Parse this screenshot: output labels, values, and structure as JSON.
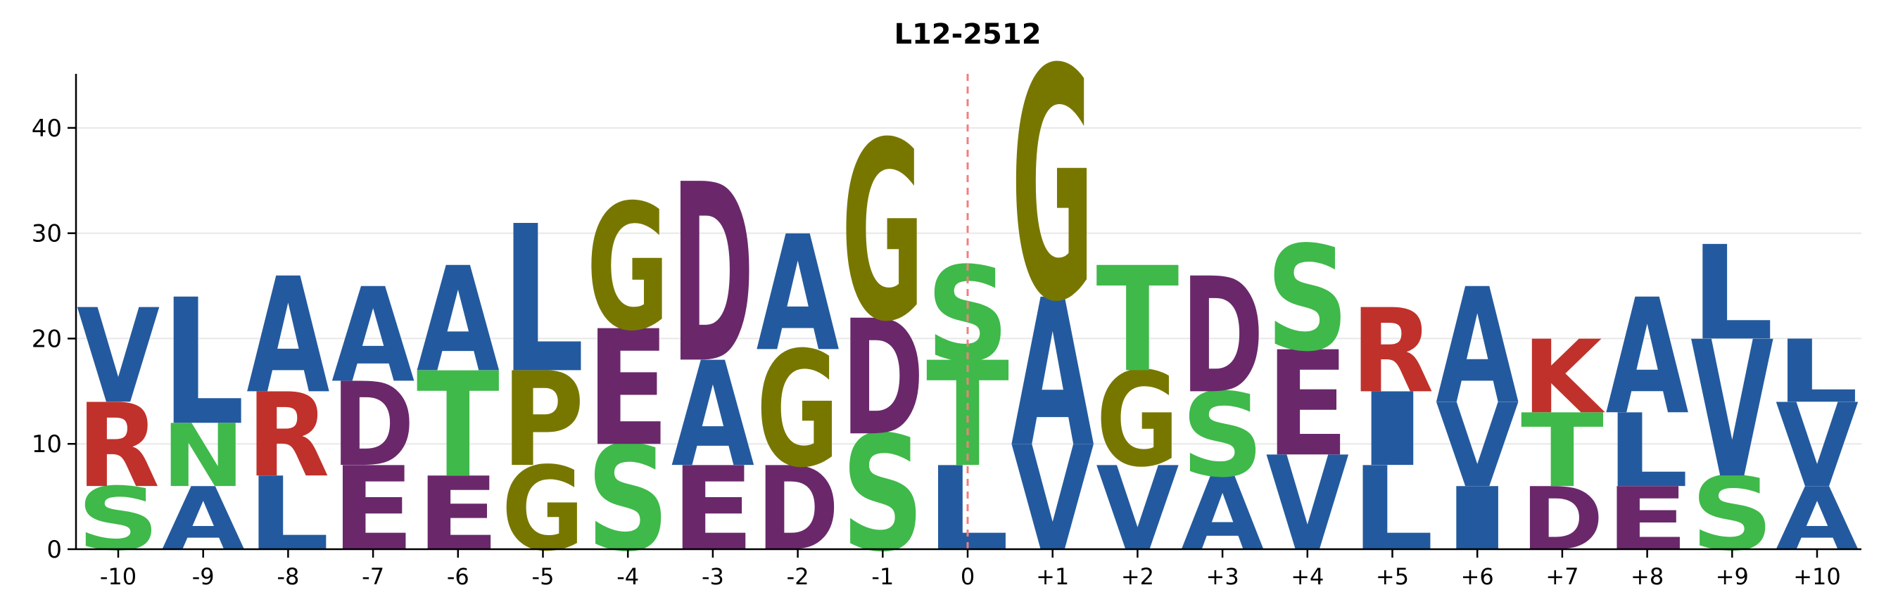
{
  "chart_data": {
    "type": "sequence-logo",
    "title": "L12-2512",
    "xlabel": "",
    "ylabel": "",
    "ylim": [
      0,
      46
    ],
    "yticks": [
      0,
      10,
      20,
      30,
      40
    ],
    "grid": "horizontal",
    "center_marker": {
      "position": "0",
      "color": "#f07f7f",
      "style": "dashed"
    },
    "colors": {
      "hydrophobic": "#235a9f",
      "basic": "#c0312b",
      "acidic": "#6a286b",
      "polar": "#3fb94a",
      "special": "#777700"
    },
    "positions": [
      {
        "label": "-10",
        "stack": [
          {
            "letter": "S",
            "height": 6,
            "group": "polar"
          },
          {
            "letter": "R",
            "height": 8,
            "group": "basic"
          },
          {
            "letter": "V",
            "height": 9,
            "group": "hydrophobic"
          }
        ]
      },
      {
        "label": "-9",
        "stack": [
          {
            "letter": "A",
            "height": 6,
            "group": "hydrophobic"
          },
          {
            "letter": "N",
            "height": 6,
            "group": "polar"
          },
          {
            "letter": "L",
            "height": 12,
            "group": "hydrophobic"
          }
        ]
      },
      {
        "label": "-8",
        "stack": [
          {
            "letter": "L",
            "height": 7,
            "group": "hydrophobic"
          },
          {
            "letter": "R",
            "height": 8,
            "group": "basic"
          },
          {
            "letter": "A",
            "height": 11,
            "group": "hydrophobic"
          }
        ]
      },
      {
        "label": "-7",
        "stack": [
          {
            "letter": "E",
            "height": 8,
            "group": "acidic"
          },
          {
            "letter": "D",
            "height": 8,
            "group": "acidic"
          },
          {
            "letter": "A",
            "height": 9,
            "group": "hydrophobic"
          }
        ]
      },
      {
        "label": "-6",
        "stack": [
          {
            "letter": "E",
            "height": 7,
            "group": "acidic"
          },
          {
            "letter": "T",
            "height": 10,
            "group": "polar"
          },
          {
            "letter": "A",
            "height": 10,
            "group": "hydrophobic"
          }
        ]
      },
      {
        "label": "-5",
        "stack": [
          {
            "letter": "G",
            "height": 8,
            "group": "special"
          },
          {
            "letter": "P",
            "height": 9,
            "group": "special"
          },
          {
            "letter": "L",
            "height": 14,
            "group": "hydrophobic"
          }
        ]
      },
      {
        "label": "-4",
        "stack": [
          {
            "letter": "S",
            "height": 10,
            "group": "polar"
          },
          {
            "letter": "E",
            "height": 11,
            "group": "acidic"
          },
          {
            "letter": "G",
            "height": 12,
            "group": "special"
          }
        ]
      },
      {
        "label": "-3",
        "stack": [
          {
            "letter": "E",
            "height": 8,
            "group": "acidic"
          },
          {
            "letter": "A",
            "height": 10,
            "group": "hydrophobic"
          },
          {
            "letter": "D",
            "height": 17,
            "group": "acidic"
          }
        ]
      },
      {
        "label": "-2",
        "stack": [
          {
            "letter": "D",
            "height": 8,
            "group": "acidic"
          },
          {
            "letter": "G",
            "height": 11,
            "group": "special"
          },
          {
            "letter": "A",
            "height": 11,
            "group": "hydrophobic"
          }
        ]
      },
      {
        "label": "-1",
        "stack": [
          {
            "letter": "S",
            "height": 11,
            "group": "polar"
          },
          {
            "letter": "D",
            "height": 11,
            "group": "acidic"
          },
          {
            "letter": "G",
            "height": 17,
            "group": "special"
          }
        ]
      },
      {
        "label": "0",
        "stack": [
          {
            "letter": "L",
            "height": 8,
            "group": "hydrophobic"
          },
          {
            "letter": "T",
            "height": 10,
            "group": "polar"
          },
          {
            "letter": "S",
            "height": 9,
            "group": "polar"
          }
        ]
      },
      {
        "label": "+1",
        "stack": [
          {
            "letter": "V",
            "height": 10,
            "group": "hydrophobic"
          },
          {
            "letter": "A",
            "height": 14,
            "group": "hydrophobic"
          },
          {
            "letter": "G",
            "height": 22,
            "group": "special"
          }
        ]
      },
      {
        "label": "+2",
        "stack": [
          {
            "letter": "V",
            "height": 8,
            "group": "hydrophobic"
          },
          {
            "letter": "G",
            "height": 9,
            "group": "special"
          },
          {
            "letter": "T",
            "height": 10,
            "group": "polar"
          }
        ]
      },
      {
        "label": "+3",
        "stack": [
          {
            "letter": "A",
            "height": 7,
            "group": "hydrophobic"
          },
          {
            "letter": "S",
            "height": 8,
            "group": "polar"
          },
          {
            "letter": "D",
            "height": 11,
            "group": "acidic"
          }
        ]
      },
      {
        "label": "+4",
        "stack": [
          {
            "letter": "V",
            "height": 9,
            "group": "hydrophobic"
          },
          {
            "letter": "E",
            "height": 10,
            "group": "acidic"
          },
          {
            "letter": "S",
            "height": 10,
            "group": "polar"
          }
        ]
      },
      {
        "label": "+5",
        "stack": [
          {
            "letter": "L",
            "height": 8,
            "group": "hydrophobic"
          },
          {
            "letter": "I",
            "height": 7,
            "group": "hydrophobic"
          },
          {
            "letter": "R",
            "height": 8,
            "group": "basic"
          }
        ]
      },
      {
        "label": "+6",
        "stack": [
          {
            "letter": "I",
            "height": 6,
            "group": "hydrophobic"
          },
          {
            "letter": "V",
            "height": 8,
            "group": "hydrophobic"
          },
          {
            "letter": "A",
            "height": 11,
            "group": "hydrophobic"
          }
        ]
      },
      {
        "label": "+7",
        "stack": [
          {
            "letter": "D",
            "height": 6,
            "group": "acidic"
          },
          {
            "letter": "T",
            "height": 7,
            "group": "polar"
          },
          {
            "letter": "K",
            "height": 7,
            "group": "basic"
          }
        ]
      },
      {
        "label": "+8",
        "stack": [
          {
            "letter": "E",
            "height": 6,
            "group": "acidic"
          },
          {
            "letter": "L",
            "height": 7,
            "group": "hydrophobic"
          },
          {
            "letter": "A",
            "height": 11,
            "group": "hydrophobic"
          }
        ]
      },
      {
        "label": "+9",
        "stack": [
          {
            "letter": "S",
            "height": 7,
            "group": "polar"
          },
          {
            "letter": "V",
            "height": 13,
            "group": "hydrophobic"
          },
          {
            "letter": "L",
            "height": 9,
            "group": "hydrophobic"
          }
        ]
      },
      {
        "label": "+10",
        "stack": [
          {
            "letter": "A",
            "height": 6,
            "group": "hydrophobic"
          },
          {
            "letter": "V",
            "height": 8,
            "group": "hydrophobic"
          },
          {
            "letter": "L",
            "height": 6,
            "group": "hydrophobic"
          }
        ]
      }
    ]
  }
}
